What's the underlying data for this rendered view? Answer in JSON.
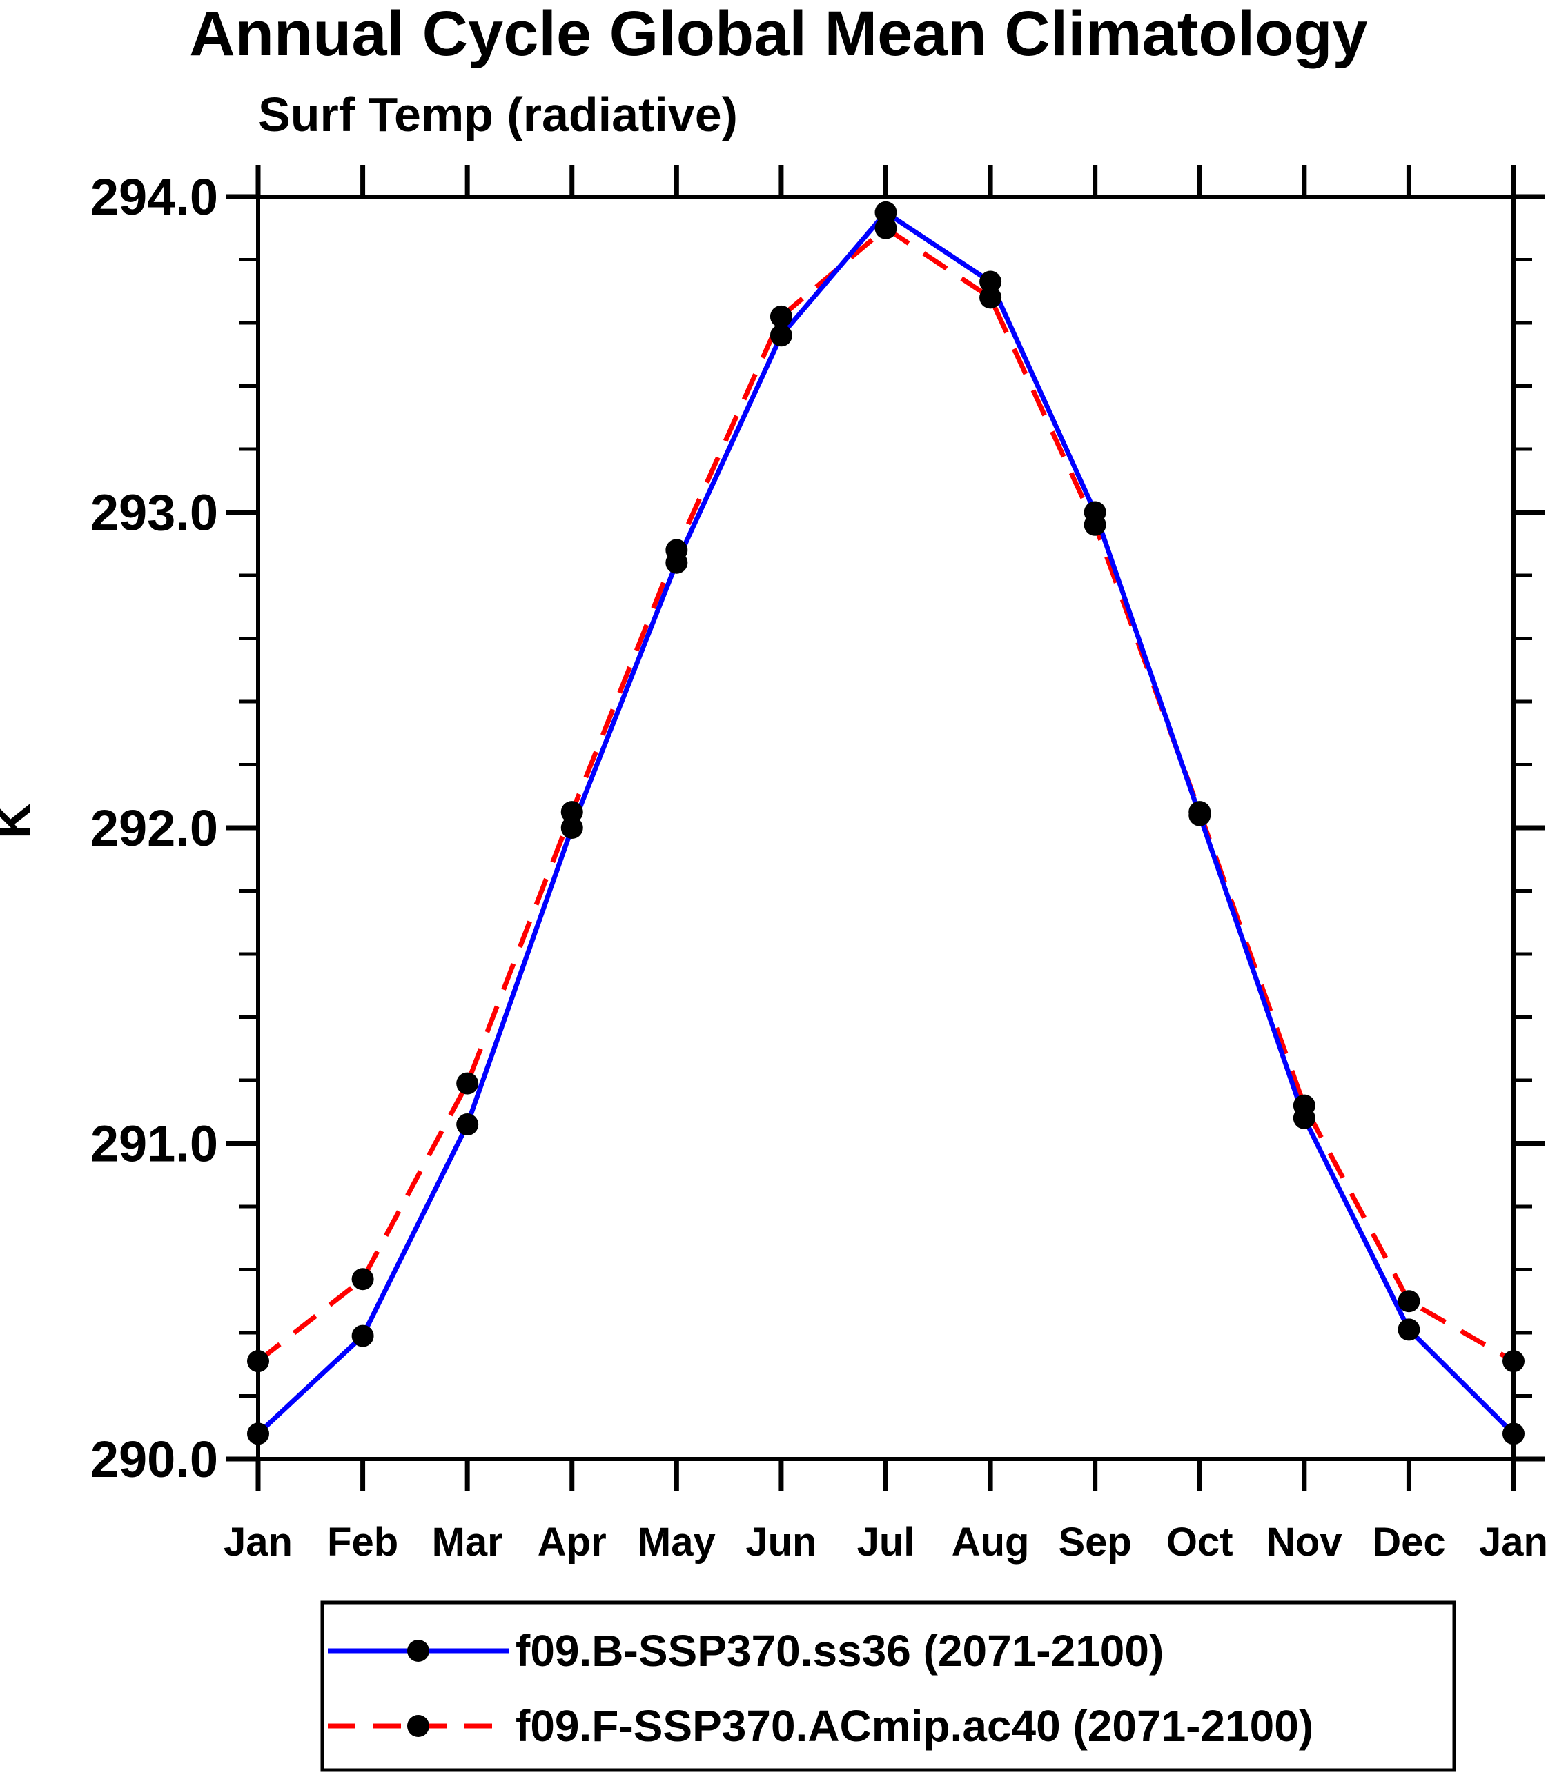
{
  "page": {
    "background_color": "#ffffff",
    "axis_color": "#000000",
    "text_color": "#000000"
  },
  "chart": {
    "title": "Annual Cycle Global Mean Climatology",
    "subtitle": "Surf Temp (radiative)",
    "ylabel": "K"
  },
  "chart_data": {
    "type": "line",
    "title": "Annual Cycle Global Mean Climatology",
    "subtitle": "Surf Temp (radiative)",
    "xlabel": "",
    "ylabel": "K",
    "grid": false,
    "legend_position": "bottom",
    "x_categories": [
      "Jan",
      "Feb",
      "Mar",
      "Apr",
      "May",
      "Jun",
      "Jul",
      "Aug",
      "Sep",
      "Oct",
      "Nov",
      "Dec",
      "Jan"
    ],
    "ylim": [
      290.0,
      294.0
    ],
    "y_major_ticks": [
      {
        "value": 290.0,
        "label": "290.0"
      },
      {
        "value": 291.0,
        "label": "291.0"
      },
      {
        "value": 292.0,
        "label": "292.0"
      },
      {
        "value": 293.0,
        "label": "293.0"
      },
      {
        "value": 294.0,
        "label": "294.0"
      }
    ],
    "y_minor_tick_step": 0.2,
    "series": [
      {
        "name": "f09.B-SSP370.ss36 (2071-2100)",
        "color": "#0000ff",
        "line_style": "solid",
        "marker": "circle",
        "marker_color": "#000000",
        "values": [
          290.08,
          290.39,
          291.06,
          292.0,
          292.84,
          293.56,
          293.95,
          293.73,
          293.0,
          292.04,
          291.08,
          290.41,
          290.08
        ]
      },
      {
        "name": "f09.F-SSP370.ACmip.ac40 (2071-2100)",
        "color": "#ff0000",
        "line_style": "dashed",
        "marker": "circle",
        "marker_color": "#000000",
        "values": [
          290.31,
          290.57,
          291.19,
          292.05,
          292.88,
          293.62,
          293.9,
          293.68,
          292.96,
          292.05,
          291.12,
          290.5,
          290.31
        ]
      }
    ]
  }
}
